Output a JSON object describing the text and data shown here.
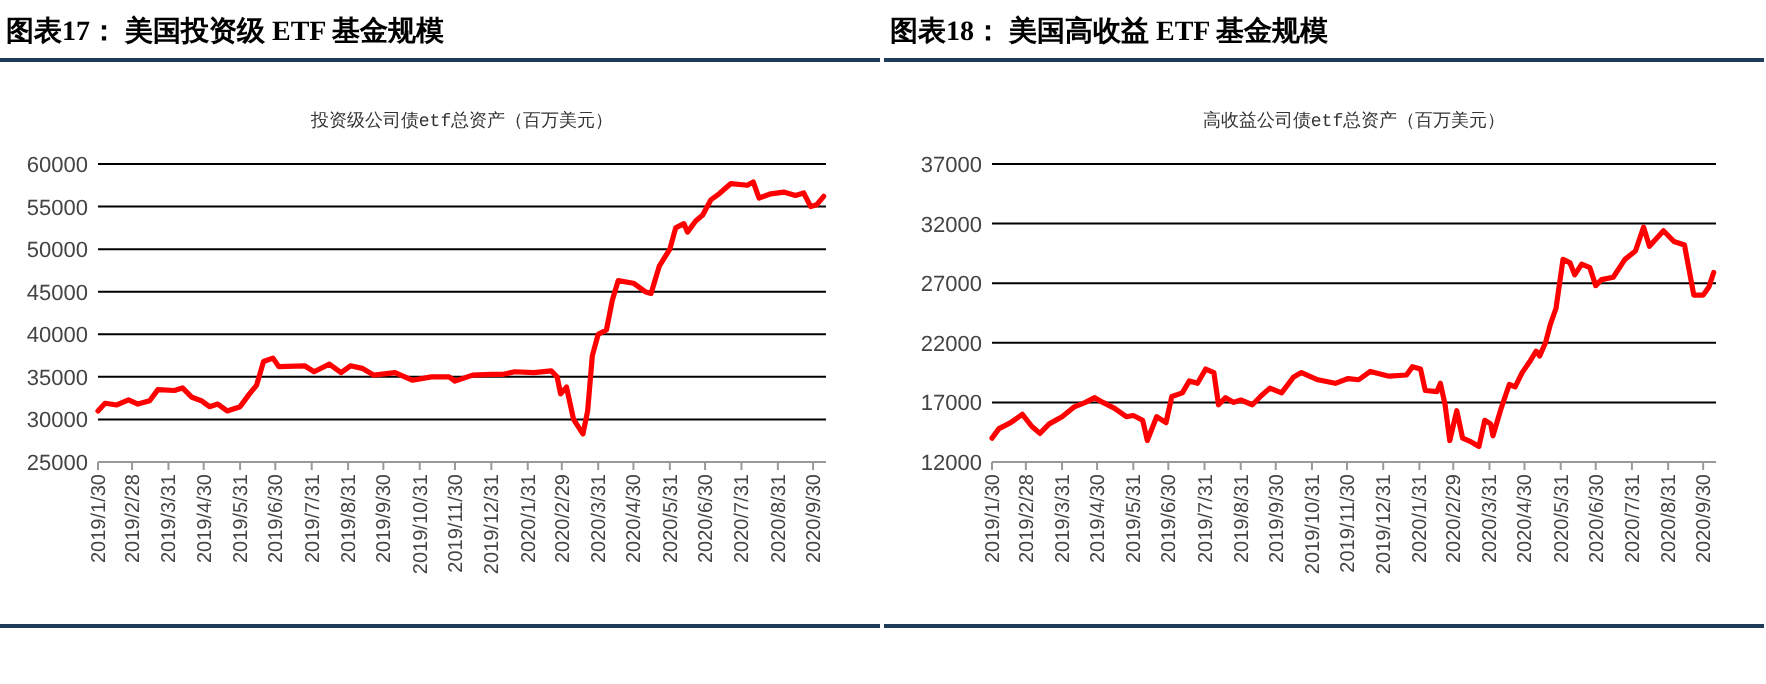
{
  "chart_data": [
    {
      "type": "line",
      "title": "图表17：  美国投资级 ETF 基金规模",
      "subtitle": "投资级公司债etf总资产（百万美元）",
      "color": "#ff0000",
      "grid": "y",
      "xlim": [
        "2019-01-30",
        "2020-10-11"
      ],
      "xticks": [
        {
          "value": "2019-01-30",
          "label": "2019/1/30"
        },
        {
          "value": "2019-02-28",
          "label": "2019/2/28"
        },
        {
          "value": "2019-03-31",
          "label": "2019/3/31"
        },
        {
          "value": "2019-04-30",
          "label": "2019/4/30"
        },
        {
          "value": "2019-05-31",
          "label": "2019/5/31"
        },
        {
          "value": "2019-06-30",
          "label": "2019/6/30"
        },
        {
          "value": "2019-07-31",
          "label": "2019/7/31"
        },
        {
          "value": "2019-08-31",
          "label": "2019/8/31"
        },
        {
          "value": "2019-09-30",
          "label": "2019/9/30"
        },
        {
          "value": "2019-10-31",
          "label": "2019/10/31"
        },
        {
          "value": "2019-11-30",
          "label": "2019/11/30"
        },
        {
          "value": "2019-12-31",
          "label": "2019/12/31"
        },
        {
          "value": "2020-01-31",
          "label": "2020/1/31"
        },
        {
          "value": "2020-02-29",
          "label": "2020/2/29"
        },
        {
          "value": "2020-03-31",
          "label": "2020/3/31"
        },
        {
          "value": "2020-04-30",
          "label": "2020/4/30"
        },
        {
          "value": "2020-05-31",
          "label": "2020/5/31"
        },
        {
          "value": "2020-06-30",
          "label": "2020/6/30"
        },
        {
          "value": "2020-07-31",
          "label": "2020/7/31"
        },
        {
          "value": "2020-08-31",
          "label": "2020/8/31"
        },
        {
          "value": "2020-09-30",
          "label": "2020/9/30"
        }
      ],
      "ylim": [
        25000,
        60000
      ],
      "yticks": [
        25000,
        30000,
        35000,
        40000,
        45000,
        50000,
        55000,
        60000
      ],
      "x": [
        "2019-01-30",
        "2019-02-05",
        "2019-02-15",
        "2019-02-25",
        "2019-03-05",
        "2019-03-15",
        "2019-03-22",
        "2019-04-05",
        "2019-04-12",
        "2019-04-20",
        "2019-04-28",
        "2019-05-05",
        "2019-05-12",
        "2019-05-20",
        "2019-05-31",
        "2019-06-08",
        "2019-06-14",
        "2019-06-20",
        "2019-06-28",
        "2019-07-03",
        "2019-07-25",
        "2019-08-02",
        "2019-08-15",
        "2019-08-25",
        "2019-09-02",
        "2019-09-12",
        "2019-09-22",
        "2019-10-10",
        "2019-10-25",
        "2019-11-10",
        "2019-11-25",
        "2019-11-30",
        "2019-12-15",
        "2019-12-31",
        "2020-01-10",
        "2020-01-20",
        "2020-02-05",
        "2020-02-20",
        "2020-02-25",
        "2020-02-28",
        "2020-03-04",
        "2020-03-10",
        "2020-03-18",
        "2020-03-22",
        "2020-03-26",
        "2020-03-31",
        "2020-04-07",
        "2020-04-12",
        "2020-04-17",
        "2020-04-30",
        "2020-05-10",
        "2020-05-15",
        "2020-05-22",
        "2020-05-31",
        "2020-06-05",
        "2020-06-12",
        "2020-06-15",
        "2020-06-22",
        "2020-06-28",
        "2020-07-05",
        "2020-07-12",
        "2020-07-22",
        "2020-08-05",
        "2020-08-10",
        "2020-08-15",
        "2020-08-25",
        "2020-09-05",
        "2020-09-15",
        "2020-09-22",
        "2020-09-28",
        "2020-10-03",
        "2020-10-09"
      ],
      "values": [
        31000,
        31900,
        31700,
        32300,
        31800,
        32200,
        33500,
        33400,
        33700,
        32600,
        32200,
        31500,
        31800,
        31000,
        31500,
        33000,
        34000,
        36800,
        37200,
        36200,
        36300,
        35600,
        36500,
        35500,
        36300,
        36000,
        35200,
        35500,
        34600,
        35000,
        35000,
        34500,
        35200,
        35300,
        35300,
        35600,
        35500,
        35700,
        35000,
        33000,
        33800,
        30000,
        28300,
        31000,
        37500,
        40000,
        40500,
        44000,
        46300,
        46000,
        45000,
        44800,
        48000,
        50000,
        52500,
        53000,
        52000,
        53300,
        54000,
        55800,
        56500,
        57700,
        57500,
        57900,
        56000,
        56500,
        56700,
        56300,
        56600,
        55000,
        55200,
        56200
      ]
    },
    {
      "type": "line",
      "title": "图表18：  美国高收益 ETF 基金规模",
      "subtitle": "高收益公司债etf总资产（百万美元）",
      "color": "#ff0000",
      "grid": "y",
      "xlim": [
        "2019-01-30",
        "2020-10-11"
      ],
      "xticks": [
        {
          "value": "2019-01-30",
          "label": "2019/1/30"
        },
        {
          "value": "2019-02-28",
          "label": "2019/2/28"
        },
        {
          "value": "2019-03-31",
          "label": "2019/3/31"
        },
        {
          "value": "2019-04-30",
          "label": "2019/4/30"
        },
        {
          "value": "2019-05-31",
          "label": "2019/5/31"
        },
        {
          "value": "2019-06-30",
          "label": "2019/6/30"
        },
        {
          "value": "2019-07-31",
          "label": "2019/7/31"
        },
        {
          "value": "2019-08-31",
          "label": "2019/8/31"
        },
        {
          "value": "2019-09-30",
          "label": "2019/9/30"
        },
        {
          "value": "2019-10-31",
          "label": "2019/10/31"
        },
        {
          "value": "2019-11-30",
          "label": "2019/11/30"
        },
        {
          "value": "2019-12-31",
          "label": "2019/12/31"
        },
        {
          "value": "2020-01-31",
          "label": "2020/1/31"
        },
        {
          "value": "2020-02-29",
          "label": "2020/2/29"
        },
        {
          "value": "2020-03-31",
          "label": "2020/3/31"
        },
        {
          "value": "2020-04-30",
          "label": "2020/4/30"
        },
        {
          "value": "2020-05-31",
          "label": "2020/5/31"
        },
        {
          "value": "2020-06-30",
          "label": "2020/6/30"
        },
        {
          "value": "2020-07-31",
          "label": "2020/7/31"
        },
        {
          "value": "2020-08-31",
          "label": "2020/8/31"
        },
        {
          "value": "2020-09-30",
          "label": "2020/9/30"
        }
      ],
      "ylim": [
        12000,
        37000
      ],
      "yticks": [
        12000,
        17000,
        22000,
        27000,
        32000,
        37000
      ],
      "x": [
        "2019-01-30",
        "2019-02-05",
        "2019-02-15",
        "2019-02-25",
        "2019-03-05",
        "2019-03-12",
        "2019-03-20",
        "2019-03-31",
        "2019-04-10",
        "2019-04-20",
        "2019-04-28",
        "2019-05-05",
        "2019-05-15",
        "2019-05-25",
        "2019-05-31",
        "2019-06-08",
        "2019-06-12",
        "2019-06-20",
        "2019-06-28",
        "2019-07-03",
        "2019-07-12",
        "2019-07-18",
        "2019-07-25",
        "2019-08-01",
        "2019-08-08",
        "2019-08-12",
        "2019-08-18",
        "2019-08-25",
        "2019-08-31",
        "2019-09-10",
        "2019-09-18",
        "2019-09-25",
        "2019-10-05",
        "2019-10-15",
        "2019-10-22",
        "2019-11-05",
        "2019-11-20",
        "2019-12-01",
        "2019-12-10",
        "2019-12-20",
        "2020-01-05",
        "2020-01-20",
        "2020-01-25",
        "2020-02-01",
        "2020-02-05",
        "2020-02-15",
        "2020-02-18",
        "2020-02-22",
        "2020-02-26",
        "2020-03-03",
        "2020-03-08",
        "2020-03-15",
        "2020-03-22",
        "2020-03-27",
        "2020-04-01",
        "2020-04-03",
        "2020-04-10",
        "2020-04-17",
        "2020-04-22",
        "2020-04-28",
        "2020-05-05",
        "2020-05-10",
        "2020-05-13",
        "2020-05-18",
        "2020-05-22",
        "2020-05-27",
        "2020-06-02",
        "2020-06-08",
        "2020-06-12",
        "2020-06-18",
        "2020-06-25",
        "2020-06-30",
        "2020-07-05",
        "2020-07-15",
        "2020-07-25",
        "2020-08-03",
        "2020-08-10",
        "2020-08-15",
        "2020-08-27",
        "2020-09-05",
        "2020-09-14",
        "2020-09-22",
        "2020-09-30",
        "2020-10-05",
        "2020-10-09"
      ],
      "values": [
        14000,
        14800,
        15300,
        16000,
        15000,
        14400,
        15200,
        15800,
        16600,
        17000,
        17400,
        17000,
        16500,
        15800,
        15900,
        15500,
        13800,
        15800,
        15300,
        17500,
        17800,
        18800,
        18600,
        19800,
        19500,
        16800,
        17400,
        17000,
        17200,
        16800,
        17600,
        18200,
        17800,
        19100,
        19500,
        18900,
        18600,
        19000,
        18900,
        19600,
        19200,
        19300,
        20000,
        19800,
        18000,
        17900,
        18600,
        16800,
        13800,
        16300,
        14000,
        13700,
        13300,
        15500,
        15200,
        14200,
        16500,
        18500,
        18300,
        19500,
        20500,
        21300,
        20900,
        22000,
        23500,
        24900,
        29000,
        28700,
        27700,
        28600,
        28300,
        26800,
        27300,
        27500,
        29000,
        29700,
        31700,
        30100,
        31400,
        30500,
        30200,
        26000,
        26000,
        26700,
        27900
      ]
    }
  ]
}
